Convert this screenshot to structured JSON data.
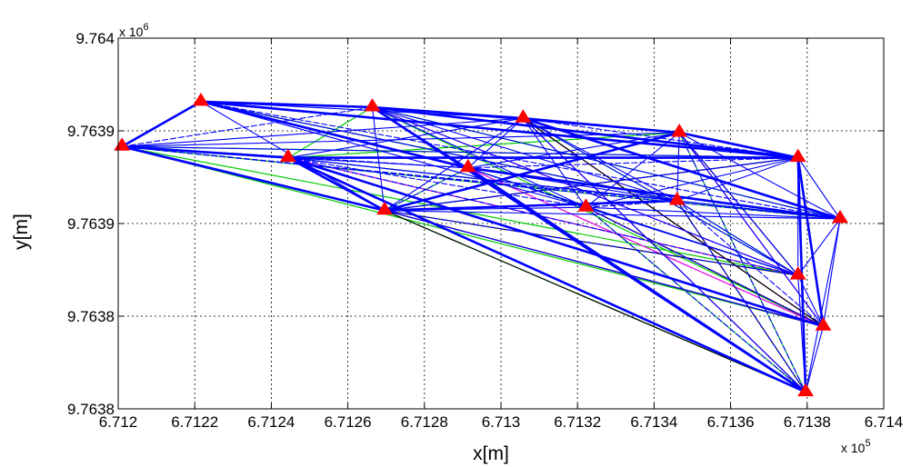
{
  "chart_data": {
    "type": "scatter",
    "title": "",
    "xlabel": "x[m]",
    "ylabel": "y[m]",
    "x_multiplier": {
      "base": "x 10",
      "exponent": "5"
    },
    "y_multiplier": {
      "base": "x 10",
      "exponent": "6"
    },
    "xlim": [
      671200,
      671400
    ],
    "ylim": [
      9763780,
      9763940
    ],
    "grid": true,
    "x_tick_values": [
      671200,
      671220,
      671240,
      671260,
      671280,
      671300,
      671320,
      671340,
      671360,
      671380,
      671400
    ],
    "x_tick_labels": [
      "6.712",
      "6.7122",
      "6.7124",
      "6.7126",
      "6.7128",
      "6.713",
      "6.7132",
      "6.7134",
      "6.7136",
      "6.7138",
      "6.714"
    ],
    "y_tick_values": [
      9763780,
      9763820,
      9763860,
      9763900,
      9763940
    ],
    "y_tick_labels": [
      "9.7638",
      "9.7638",
      "9.7639",
      "9.7639",
      "9.764"
    ],
    "marker": {
      "shape": "triangle",
      "color": "#ff0000"
    },
    "stations": [
      {
        "x": 671201.0,
        "y": 9763893.2
      },
      {
        "x": 671221.6,
        "y": 9763912.6
      },
      {
        "x": 671244.4,
        "y": 9763888.4
      },
      {
        "x": 671266.4,
        "y": 9763910.2
      },
      {
        "x": 671269.6,
        "y": 9763865.6
      },
      {
        "x": 671291.4,
        "y": 9763884.0
      },
      {
        "x": 671305.8,
        "y": 9763905.4
      },
      {
        "x": 671322.2,
        "y": 9763867.0
      },
      {
        "x": 671346.6,
        "y": 9763899.2
      },
      {
        "x": 671346.0,
        "y": 9763869.8
      },
      {
        "x": 671377.6,
        "y": 9763888.4
      },
      {
        "x": 671377.6,
        "y": 9763837.6
      },
      {
        "x": 671379.6,
        "y": 9763787.2
      },
      {
        "x": 671384.2,
        "y": 9763815.6
      },
      {
        "x": 671388.6,
        "y": 9763862.0
      }
    ],
    "series": [
      {
        "color": "#0000ff",
        "style": "solid-bold",
        "width": 2.6,
        "edges": [
          [
            0,
            1
          ],
          [
            1,
            3
          ],
          [
            3,
            6
          ],
          [
            6,
            8
          ],
          [
            8,
            10
          ],
          [
            1,
            10
          ],
          [
            0,
            2
          ],
          [
            2,
            10
          ],
          [
            10,
            13
          ],
          [
            10,
            12
          ],
          [
            2,
            13
          ],
          [
            3,
            12
          ],
          [
            1,
            5
          ],
          [
            5,
            14
          ],
          [
            2,
            4
          ],
          [
            4,
            8
          ],
          [
            4,
            9
          ],
          [
            6,
            14
          ],
          [
            0,
            4
          ],
          [
            3,
            10
          ],
          [
            2,
            12
          ],
          [
            5,
            12
          ]
        ]
      },
      {
        "color": "#0000ff",
        "style": "solid",
        "width": 1.1,
        "edges": [
          [
            0,
            6
          ],
          [
            0,
            8
          ],
          [
            1,
            4
          ],
          [
            1,
            7
          ],
          [
            1,
            9
          ],
          [
            2,
            6
          ],
          [
            2,
            9
          ],
          [
            3,
            4
          ],
          [
            3,
            5
          ],
          [
            3,
            7
          ],
          [
            3,
            9
          ],
          [
            3,
            14
          ],
          [
            4,
            6
          ],
          [
            4,
            7
          ],
          [
            4,
            10
          ],
          [
            4,
            14
          ],
          [
            5,
            6
          ],
          [
            5,
            8
          ],
          [
            5,
            9
          ],
          [
            5,
            11
          ],
          [
            6,
            7
          ],
          [
            6,
            9
          ],
          [
            6,
            11
          ],
          [
            7,
            8
          ],
          [
            7,
            10
          ],
          [
            7,
            11
          ],
          [
            7,
            14
          ],
          [
            8,
            9
          ],
          [
            8,
            11
          ],
          [
            8,
            13
          ],
          [
            8,
            14
          ],
          [
            9,
            10
          ],
          [
            9,
            11
          ],
          [
            9,
            14
          ],
          [
            10,
            11
          ],
          [
            10,
            14
          ],
          [
            11,
            12
          ],
          [
            11,
            13
          ],
          [
            11,
            14
          ],
          [
            12,
            13
          ],
          [
            12,
            14
          ],
          [
            13,
            14
          ],
          [
            2,
            5
          ],
          [
            4,
            13
          ],
          [
            6,
            12
          ],
          [
            3,
            11
          ],
          [
            0,
            10
          ],
          [
            2,
            14
          ],
          [
            3,
            8
          ],
          [
            1,
            6
          ]
        ]
      },
      {
        "color": "#0000ff",
        "style": "dashed",
        "width": 1.1,
        "edges": [
          [
            0,
            3
          ],
          [
            0,
            5
          ],
          [
            0,
            9
          ],
          [
            1,
            5
          ],
          [
            1,
            14
          ],
          [
            2,
            7
          ],
          [
            2,
            11
          ],
          [
            4,
            5
          ],
          [
            4,
            9
          ],
          [
            5,
            7
          ],
          [
            5,
            10
          ],
          [
            6,
            10
          ],
          [
            7,
            9
          ],
          [
            7,
            12
          ],
          [
            7,
            13
          ],
          [
            8,
            12
          ],
          [
            9,
            12
          ],
          [
            9,
            13
          ],
          [
            10,
            12
          ],
          [
            0,
            14
          ],
          [
            4,
            11
          ]
        ]
      },
      {
        "color": "#00cc00",
        "style": "solid",
        "width": 1.2,
        "edges": [
          [
            0,
            2
          ],
          [
            0,
            10
          ],
          [
            0,
            11
          ],
          [
            0,
            14
          ],
          [
            2,
            3
          ],
          [
            2,
            8
          ],
          [
            2,
            14
          ],
          [
            3,
            13
          ],
          [
            4,
            12
          ],
          [
            4,
            5
          ],
          [
            5,
            13
          ],
          [
            6,
            11
          ],
          [
            6,
            12
          ],
          [
            6,
            13
          ],
          [
            8,
            10
          ],
          [
            8,
            12
          ],
          [
            9,
            11
          ],
          [
            1,
            9
          ],
          [
            5,
            11
          ],
          [
            2,
            11
          ],
          [
            3,
            14
          ],
          [
            5,
            14
          ],
          [
            7,
            12
          ],
          [
            0,
            13
          ]
        ]
      },
      {
        "color": "#ff00ff",
        "style": "solid",
        "width": 1.2,
        "edges": [
          [
            3,
            6
          ],
          [
            3,
            11
          ],
          [
            5,
            13
          ],
          [
            6,
            12
          ],
          [
            2,
            11
          ],
          [
            8,
            13
          ],
          [
            7,
            13
          ],
          [
            4,
            13
          ],
          [
            5,
            12
          ],
          [
            6,
            13
          ]
        ]
      },
      {
        "color": "#000000",
        "style": "solid",
        "width": 1.2,
        "edges": [
          [
            4,
            10
          ],
          [
            4,
            13
          ],
          [
            4,
            11
          ],
          [
            2,
            10
          ],
          [
            6,
            13
          ],
          [
            9,
            12
          ],
          [
            8,
            11
          ],
          [
            4,
            12
          ],
          [
            7,
            13
          ]
        ]
      },
      {
        "color": "#000000",
        "style": "dashed",
        "width": 1.0,
        "edges": [
          [
            1,
            9
          ],
          [
            1,
            10
          ],
          [
            3,
            10
          ],
          [
            4,
            9
          ],
          [
            8,
            10
          ],
          [
            7,
            9
          ]
        ]
      }
    ]
  }
}
